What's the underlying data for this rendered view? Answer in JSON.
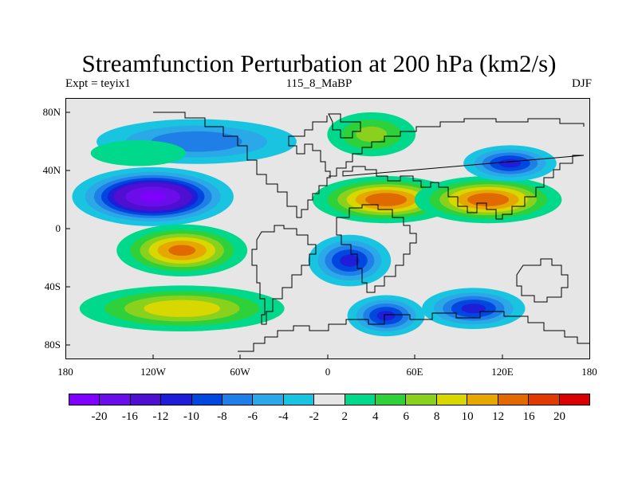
{
  "title": "Streamfunction Perturbation at 200 hPa (km2/s)",
  "subtitle_left": "Expt = teyix1",
  "subtitle_center": "115_8_MaBP",
  "subtitle_right": "DJF",
  "y_tick_labels": [
    "80N",
    "40N",
    "0",
    "40S",
    "80S"
  ],
  "x_tick_labels": [
    "180",
    "120W",
    "60W",
    "0",
    "60E",
    "120E",
    "180"
  ],
  "chart_data": {
    "type": "heatmap",
    "title": "Streamfunction Perturbation at 200 hPa (km2/s)",
    "x_range": [
      -180,
      180
    ],
    "y_range": [
      -90,
      90
    ],
    "contour_levels": [
      -20,
      -16,
      -12,
      -10,
      -8,
      -6,
      -4,
      -2,
      2,
      4,
      6,
      8,
      10,
      12,
      16,
      20
    ],
    "colors": [
      "#7f00ff",
      "#6a0de8",
      "#4e0fd0",
      "#1e1ed8",
      "#0047e0",
      "#1f7fe6",
      "#2aa8e8",
      "#18c4e0",
      "#e6e6e6",
      "#00d98c",
      "#2fd13a",
      "#8ad11d",
      "#d8d800",
      "#e6a800",
      "#e06a00",
      "#e03a00",
      "#d80000"
    ],
    "features": [
      {
        "lon": -120,
        "lat": 22,
        "value": -20,
        "sx": 30,
        "sy": 11
      },
      {
        "lon": -90,
        "lat": 60,
        "value": -7,
        "sx": 40,
        "sy": 9
      },
      {
        "lon": -130,
        "lat": 52,
        "value": 3,
        "sx": 22,
        "sy": 6
      },
      {
        "lon": 40,
        "lat": 20,
        "value": 13,
        "sx": 28,
        "sy": 9
      },
      {
        "lon": 110,
        "lat": 20,
        "value": 13,
        "sx": 28,
        "sy": 9
      },
      {
        "lon": 30,
        "lat": 65,
        "value": 6,
        "sx": 18,
        "sy": 9
      },
      {
        "lon": 125,
        "lat": 45,
        "value": -10,
        "sx": 18,
        "sy": 7
      },
      {
        "lon": -100,
        "lat": -15,
        "value": 12,
        "sx": 25,
        "sy": 10
      },
      {
        "lon": -100,
        "lat": -55,
        "value": 9,
        "sx": 40,
        "sy": 9
      },
      {
        "lon": 15,
        "lat": -22,
        "value": -10,
        "sx": 16,
        "sy": 10
      },
      {
        "lon": 40,
        "lat": -60,
        "value": -10,
        "sx": 15,
        "sy": 8
      },
      {
        "lon": 100,
        "lat": -55,
        "value": -10,
        "sx": 20,
        "sy": 8
      }
    ]
  },
  "colorbar": {
    "labels": [
      "-20",
      "-16",
      "-12",
      "-10",
      "-8",
      "-6",
      "-4",
      "-2",
      "2",
      "4",
      "6",
      "8",
      "10",
      "12",
      "16",
      "20"
    ]
  }
}
